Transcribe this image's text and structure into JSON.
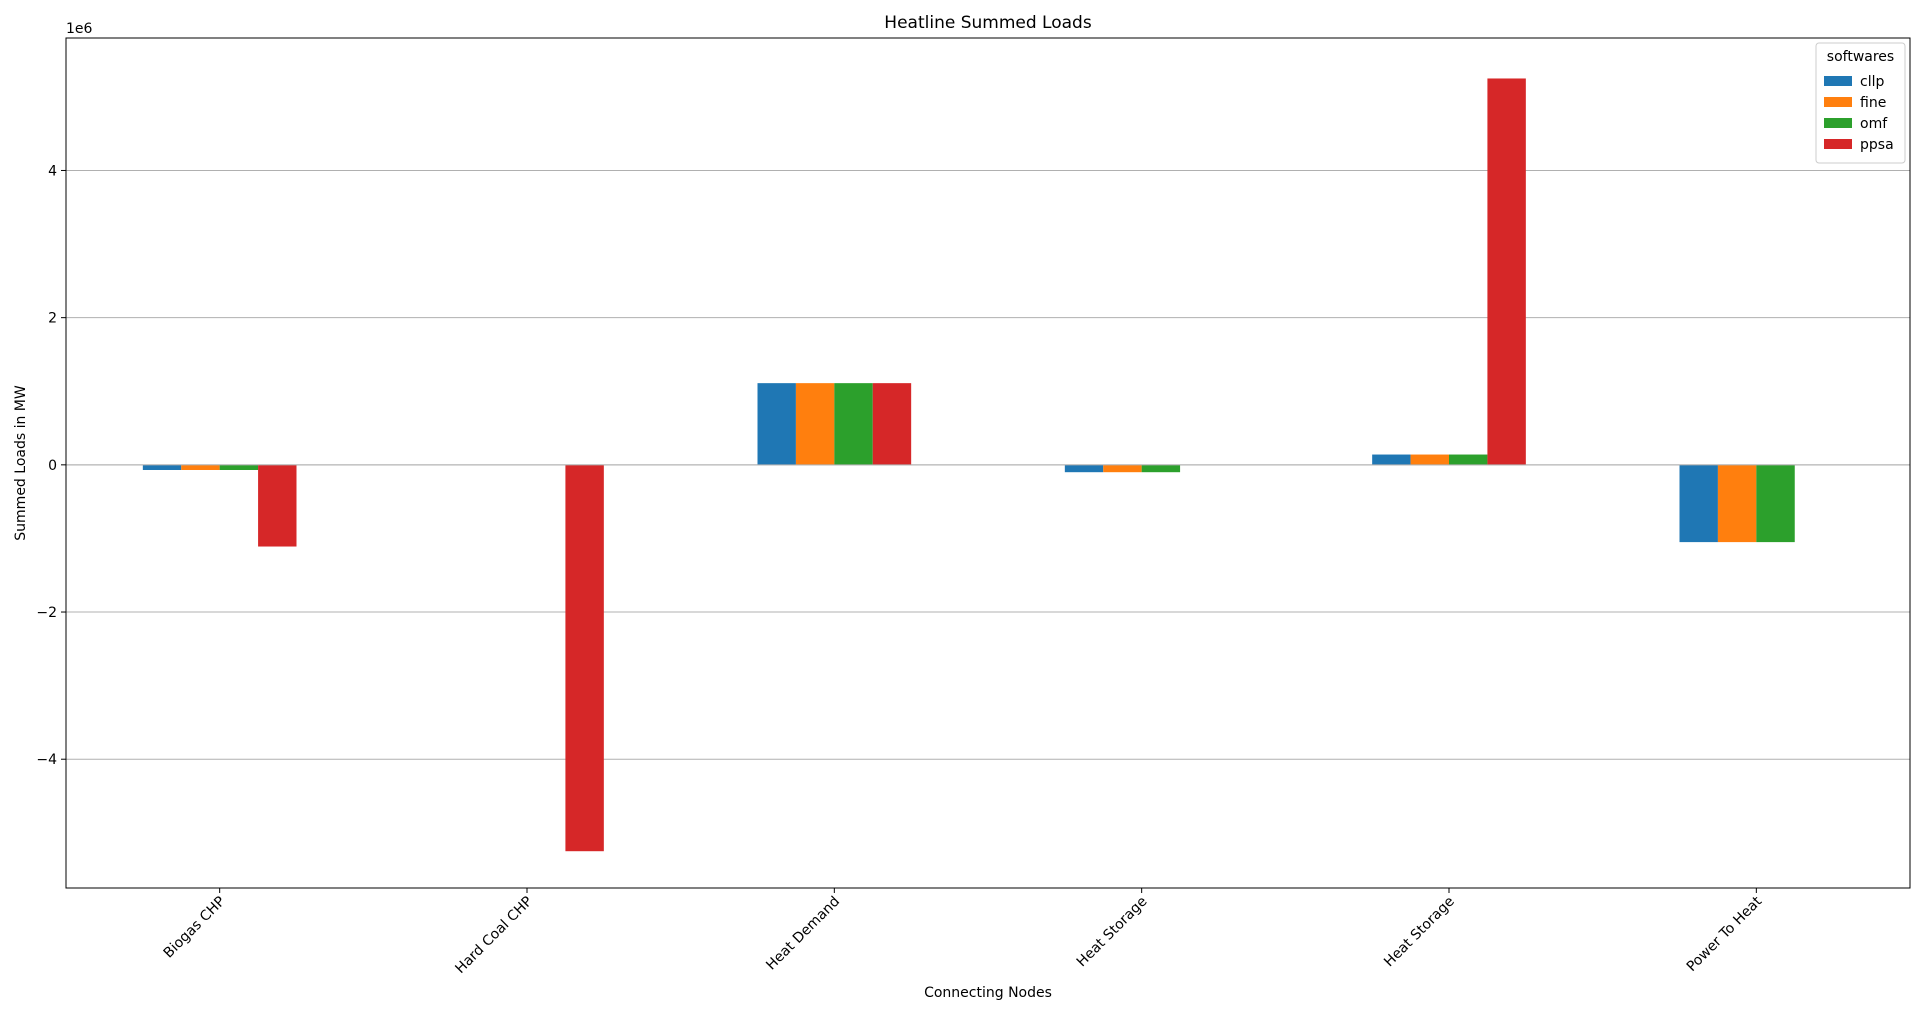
{
  "chart_data": {
    "type": "bar",
    "title": "Heatline Summed Loads",
    "xlabel": "Connecting Nodes",
    "ylabel": "Summed Loads in MW",
    "y_multiplier_label": "1e6",
    "y_unit": 1000000,
    "ylim": [
      -5750000,
      5800000
    ],
    "yticks": [
      -4000000,
      -2000000,
      0,
      2000000,
      4000000
    ],
    "ytick_labels": [
      "−4",
      "−2",
      "0",
      "2",
      "4"
    ],
    "grid": "y",
    "legend_position": "top-right",
    "legend_title": "softwares",
    "categories": [
      "Biogas CHP",
      "Hard Coal CHP",
      "Heat Demand",
      "Heat Storage",
      "Heat Storage",
      "Power To Heat"
    ],
    "series": [
      {
        "name": "cllp",
        "color": "#1f77b4",
        "values": [
          -70000,
          0,
          1110000,
          -100000,
          140000,
          -1050000
        ]
      },
      {
        "name": "fine",
        "color": "#ff7f0e",
        "values": [
          -70000,
          0,
          1110000,
          -100000,
          140000,
          -1050000
        ]
      },
      {
        "name": "omf",
        "color": "#2ca02c",
        "values": [
          -70000,
          0,
          1110000,
          -100000,
          140000,
          -1050000
        ]
      },
      {
        "name": "ppsa",
        "color": "#d62728",
        "values": [
          -1110000,
          -5250000,
          1110000,
          0,
          5250000,
          0
        ]
      }
    ]
  }
}
